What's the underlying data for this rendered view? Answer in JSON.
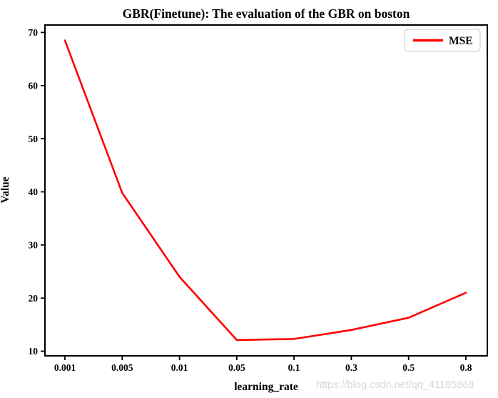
{
  "watermark": "https://blog.csdn.net/qq_41185868",
  "chart_data": {
    "type": "line",
    "title": "GBR(Finetune): The evaluation of the GBR on boston",
    "xlabel": "learning_rate",
    "ylabel": "Value",
    "categories": [
      "0.001",
      "0.005",
      "0.01",
      "0.05",
      "0.1",
      "0.3",
      "0.5",
      "0.8"
    ],
    "series": [
      {
        "name": "MSE",
        "color": "#ff0000",
        "values": [
          68.5,
          39.8,
          24.0,
          12.1,
          12.3,
          14.0,
          16.3,
          21.0
        ]
      }
    ],
    "yticks": [
      10,
      20,
      30,
      40,
      50,
      60,
      70
    ],
    "ylim": [
      9.13,
      71.4
    ],
    "x_scale": "equidistant-categories",
    "grid": false,
    "legend_position": "upper right",
    "axis_color": "#000000",
    "background_color": "#ffffff"
  }
}
